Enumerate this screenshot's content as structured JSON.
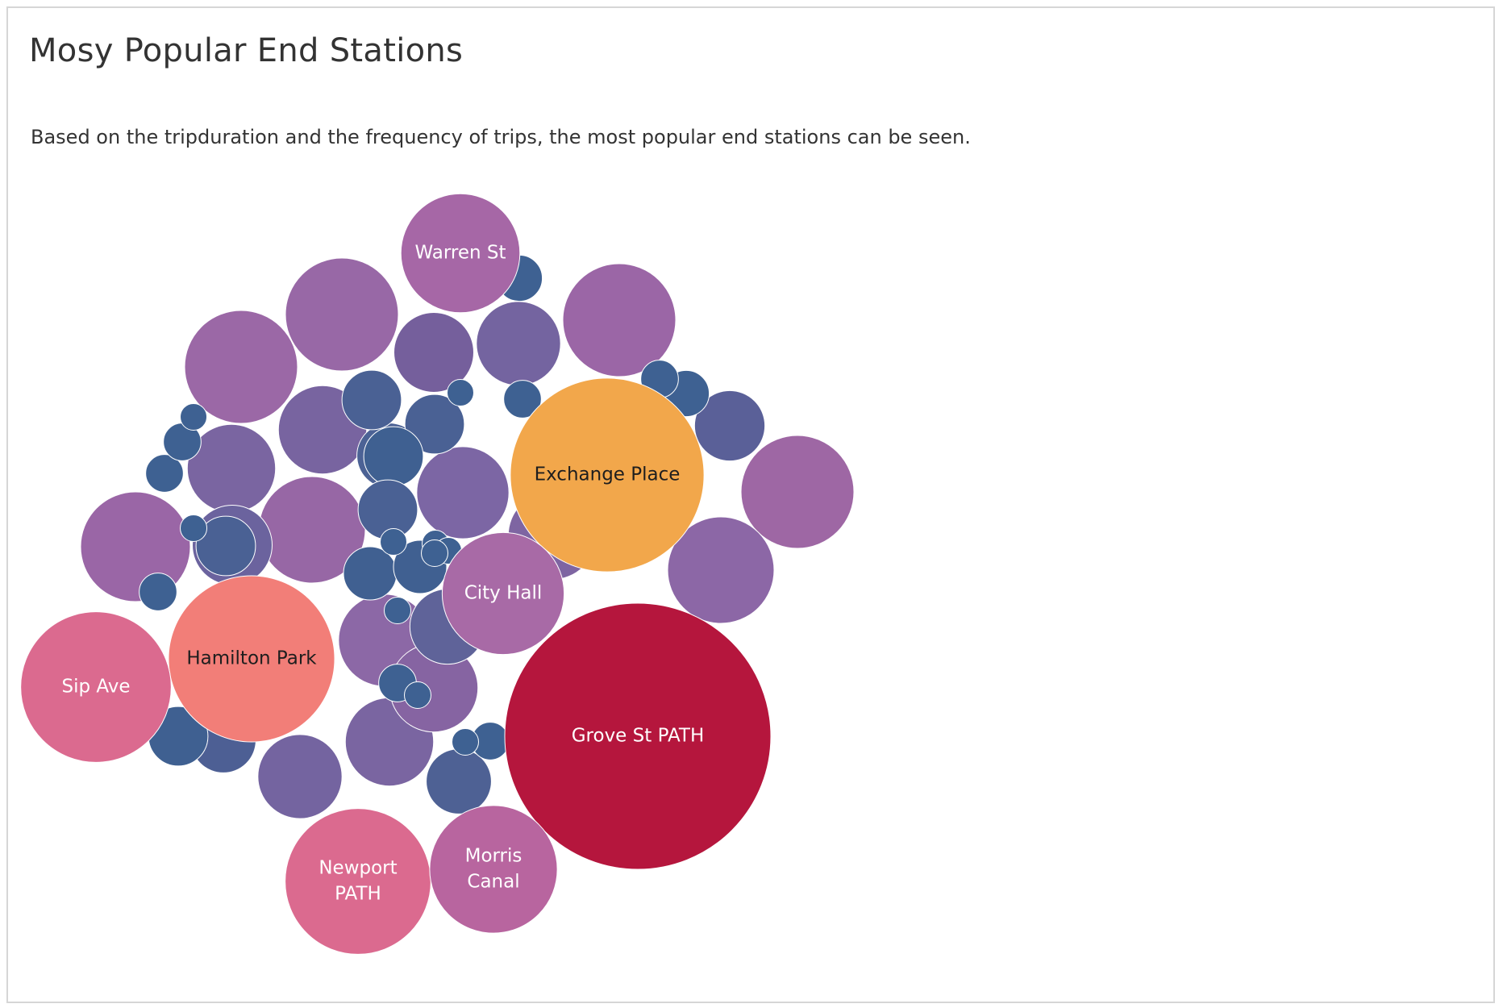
{
  "title": "Mosy Popular End Stations",
  "subtitle": "Based on the tripduration and the frequency of trips, the most popular end stations can be seen.",
  "chart_data": {
    "type": "bubble",
    "title": "Mosy Popular End Stations",
    "subtitle": "Based on the tripduration and the frequency of trips, the most popular end stations can be seen.",
    "size_measure": "frequency of trips",
    "color_measure": "tripduration",
    "color_scale": [
      "#3e6192",
      "#7b64a3",
      "#a667a6",
      "#db6a8f",
      "#f27e78",
      "#f2a74b",
      "#b5163d"
    ],
    "labeled_stations": [
      {
        "name": "Grove St PATH",
        "label_lines": [
          "Grove St PATH"
        ],
        "relative_size": 1.0,
        "color": "#b5163d"
      },
      {
        "name": "Exchange Place",
        "label_lines": [
          "Exchange Place"
        ],
        "relative_size": 0.53,
        "color": "#f2a74b"
      },
      {
        "name": "Hamilton Park",
        "label_lines": [
          "Hamilton Park"
        ],
        "relative_size": 0.39,
        "color": "#f27e78"
      },
      {
        "name": "Sip Ave",
        "label_lines": [
          "Sip Ave"
        ],
        "relative_size": 0.32,
        "color": "#db6a8f"
      },
      {
        "name": "Newport PATH",
        "label_lines": [
          "Newport",
          "PATH"
        ],
        "relative_size": 0.3,
        "color": "#db6a8f"
      },
      {
        "name": "Morris Canal",
        "label_lines": [
          "Morris",
          "Canal"
        ],
        "relative_size": 0.23,
        "color": "#b8659f"
      },
      {
        "name": "City Hall",
        "label_lines": [
          "City Hall"
        ],
        "relative_size": 0.21,
        "color": "#a86aa6"
      },
      {
        "name": "Warren St",
        "label_lines": [
          "Warren St"
        ],
        "relative_size": 0.2,
        "color": "#a667a6"
      }
    ],
    "unlabeled_stations": [
      {
        "relative_size": 0.18,
        "color": "#9e67a4"
      },
      {
        "relative_size": 0.18,
        "color": "#9b66a6"
      },
      {
        "relative_size": 0.18,
        "color": "#9868a6"
      },
      {
        "relative_size": 0.18,
        "color": "#9b68a6"
      },
      {
        "relative_size": 0.17,
        "color": "#9a66a6"
      },
      {
        "relative_size": 0.16,
        "color": "#9767a5"
      },
      {
        "relative_size": 0.16,
        "color": "#8c67a6"
      },
      {
        "relative_size": 0.12,
        "color": "#8c68a6"
      },
      {
        "relative_size": 0.12,
        "color": "#7c66a4"
      },
      {
        "relative_size": 0.11,
        "color": "#7e65a2"
      },
      {
        "relative_size": 0.11,
        "color": "#7864a0"
      },
      {
        "relative_size": 0.11,
        "color": "#7a65a1"
      },
      {
        "relative_size": 0.11,
        "color": "#7a65a1"
      },
      {
        "relative_size": 0.11,
        "color": "#8664a2"
      },
      {
        "relative_size": 0.1,
        "color": "#7464a0"
      },
      {
        "relative_size": 0.1,
        "color": "#7464a0"
      },
      {
        "relative_size": 0.09,
        "color": "#755f9c"
      },
      {
        "relative_size": 0.09,
        "color": "#6b639e"
      },
      {
        "relative_size": 0.08,
        "color": "#5f6399"
      },
      {
        "relative_size": 0.07,
        "color": "#5a6098"
      },
      {
        "relative_size": 0.06,
        "color": "#4d5f94"
      },
      {
        "relative_size": 0.06,
        "color": "#4e6194"
      },
      {
        "relative_size": 0.06,
        "color": "#4c6295"
      },
      {
        "relative_size": 0.05,
        "color": "#4a6194"
      },
      {
        "relative_size": 0.05,
        "color": "#4a6194"
      },
      {
        "relative_size": 0.05,
        "color": "#4a6194"
      },
      {
        "relative_size": 0.05,
        "color": "#4a6194"
      },
      {
        "relative_size": 0.05,
        "color": "#3f6091"
      },
      {
        "relative_size": 0.05,
        "color": "#3f6091"
      },
      {
        "relative_size": 0.05,
        "color": "#4a6194"
      },
      {
        "relative_size": 0.04,
        "color": "#406091"
      },
      {
        "relative_size": 0.04,
        "color": "#406091"
      },
      {
        "relative_size": 0.03,
        "color": "#3e6192"
      },
      {
        "relative_size": 0.03,
        "color": "#3e6192"
      },
      {
        "relative_size": 0.02,
        "color": "#3e6192"
      },
      {
        "relative_size": 0.02,
        "color": "#3e6192"
      },
      {
        "relative_size": 0.02,
        "color": "#3e6192"
      },
      {
        "relative_size": 0.02,
        "color": "#3e6192"
      },
      {
        "relative_size": 0.02,
        "color": "#3e6192"
      },
      {
        "relative_size": 0.02,
        "color": "#3e6192"
      },
      {
        "relative_size": 0.02,
        "color": "#3e6192"
      },
      {
        "relative_size": 0.01,
        "color": "#3e6192"
      },
      {
        "relative_size": 0.01,
        "color": "#3e6192"
      },
      {
        "relative_size": 0.01,
        "color": "#3e6192"
      },
      {
        "relative_size": 0.01,
        "color": "#3e6192"
      },
      {
        "relative_size": 0.01,
        "color": "#3e6192"
      },
      {
        "relative_size": 0.01,
        "color": "#3e6192"
      },
      {
        "relative_size": 0.01,
        "color": "#3e6192"
      },
      {
        "relative_size": 0.01,
        "color": "#3e6192"
      },
      {
        "relative_size": 0.01,
        "color": "#3e6192"
      },
      {
        "relative_size": 0.01,
        "color": "#3e6192"
      },
      {
        "relative_size": 0.01,
        "color": "#3e6192"
      }
    ]
  }
}
